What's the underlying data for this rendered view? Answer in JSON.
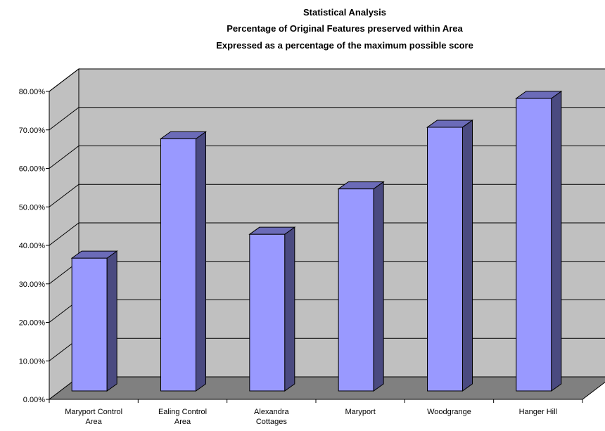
{
  "chart_data": {
    "type": "bar",
    "title_lines": [
      "Statistical Analysis",
      "Percentage of Original Features preserved within Area",
      "Expressed as a percentage of the maximum possible score"
    ],
    "categories": [
      [
        "Maryport Control",
        "Area"
      ],
      [
        "Ealing Control",
        "Area"
      ],
      [
        "Alexandra",
        "Cottages"
      ],
      [
        "Maryport"
      ],
      [
        "Woodgrange"
      ],
      [
        "Hanger Hill"
      ]
    ],
    "values": [
      34.5,
      65.5,
      40.7,
      52.5,
      68.5,
      76.0
    ],
    "ylim": [
      0,
      80
    ],
    "y_ticks": [
      "0.00%",
      "10.00%",
      "20.00%",
      "30.00%",
      "40.00%",
      "50.00%",
      "60.00%",
      "70.00%",
      "80.00%"
    ],
    "grid": true,
    "three_d": true,
    "colors": {
      "bar_front": "#9999ff",
      "bar_side": "#4a4a80",
      "bar_top": "#6b6bb8",
      "wall": "#c0c0c0",
      "floor": "#808080"
    }
  }
}
